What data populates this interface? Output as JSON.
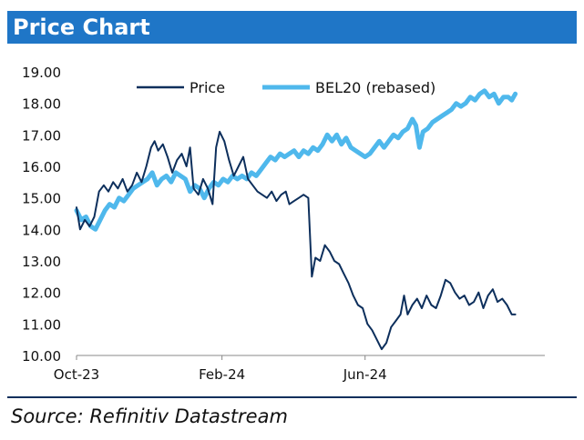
{
  "header": {
    "title": "Price Chart"
  },
  "footer": {
    "source": "Source: Refinitiv Datastream"
  },
  "colors": {
    "title_bar": "#1f76c7",
    "price": "#0d2f5c",
    "bel20": "#4fb8ec",
    "axis": "#888888",
    "rule": "#0d2f5c"
  },
  "chart_data": {
    "type": "line",
    "title": "",
    "xlabel": "",
    "ylabel": "",
    "ylim": [
      10.0,
      19.0
    ],
    "yticks": [
      "19.00",
      "18.00",
      "17.00",
      "16.00",
      "15.00",
      "14.00",
      "13.00",
      "12.00",
      "11.00",
      "10.00"
    ],
    "xticks": [
      {
        "label": "Oct-23",
        "x": "2023-10-01"
      },
      {
        "label": "Feb-24",
        "x": "2024-02-01"
      },
      {
        "label": "Jun-24",
        "x": "2024-06-01"
      }
    ],
    "xlim": [
      "2023-10-01",
      "2024-10-31"
    ],
    "grid": false,
    "legend": "top-center",
    "series": [
      {
        "name": "Price",
        "points": [
          [
            "2023-10-01",
            14.7
          ],
          [
            "2023-10-04",
            14.0
          ],
          [
            "2023-10-08",
            14.3
          ],
          [
            "2023-10-12",
            14.1
          ],
          [
            "2023-10-16",
            14.4
          ],
          [
            "2023-10-20",
            15.2
          ],
          [
            "2023-10-24",
            15.4
          ],
          [
            "2023-10-28",
            15.2
          ],
          [
            "2023-11-01",
            15.5
          ],
          [
            "2023-11-05",
            15.3
          ],
          [
            "2023-11-09",
            15.6
          ],
          [
            "2023-11-13",
            15.2
          ],
          [
            "2023-11-17",
            15.4
          ],
          [
            "2023-11-21",
            15.8
          ],
          [
            "2023-11-25",
            15.5
          ],
          [
            "2023-11-29",
            16.0
          ],
          [
            "2023-12-03",
            16.6
          ],
          [
            "2023-12-06",
            16.8
          ],
          [
            "2023-12-09",
            16.5
          ],
          [
            "2023-12-13",
            16.7
          ],
          [
            "2023-12-17",
            16.3
          ],
          [
            "2023-12-21",
            15.8
          ],
          [
            "2023-12-25",
            16.2
          ],
          [
            "2023-12-29",
            16.4
          ],
          [
            "2024-01-02",
            16.0
          ],
          [
            "2024-01-05",
            16.6
          ],
          [
            "2024-01-08",
            15.3
          ],
          [
            "2024-01-12",
            15.1
          ],
          [
            "2024-01-16",
            15.6
          ],
          [
            "2024-01-20",
            15.3
          ],
          [
            "2024-01-24",
            14.8
          ],
          [
            "2024-01-27",
            16.6
          ],
          [
            "2024-01-30",
            17.1
          ],
          [
            "2024-02-03",
            16.8
          ],
          [
            "2024-02-07",
            16.2
          ],
          [
            "2024-02-11",
            15.7
          ],
          [
            "2024-02-15",
            16.0
          ],
          [
            "2024-02-19",
            16.3
          ],
          [
            "2024-02-23",
            15.6
          ],
          [
            "2024-02-27",
            15.4
          ],
          [
            "2024-03-02",
            15.2
          ],
          [
            "2024-03-06",
            15.1
          ],
          [
            "2024-03-10",
            15.0
          ],
          [
            "2024-03-14",
            15.2
          ],
          [
            "2024-03-18",
            14.9
          ],
          [
            "2024-03-22",
            15.1
          ],
          [
            "2024-03-26",
            15.2
          ],
          [
            "2024-03-29",
            14.8
          ],
          [
            "2024-04-02",
            14.9
          ],
          [
            "2024-04-06",
            15.0
          ],
          [
            "2024-04-10",
            15.1
          ],
          [
            "2024-04-14",
            15.0
          ],
          [
            "2024-04-17",
            12.5
          ],
          [
            "2024-04-20",
            13.1
          ],
          [
            "2024-04-24",
            13.0
          ],
          [
            "2024-04-28",
            13.5
          ],
          [
            "2024-05-02",
            13.3
          ],
          [
            "2024-05-06",
            13.0
          ],
          [
            "2024-05-10",
            12.9
          ],
          [
            "2024-05-14",
            12.6
          ],
          [
            "2024-05-18",
            12.3
          ],
          [
            "2024-05-22",
            11.9
          ],
          [
            "2024-05-26",
            11.6
          ],
          [
            "2024-05-30",
            11.5
          ],
          [
            "2024-06-03",
            11.0
          ],
          [
            "2024-06-07",
            10.8
          ],
          [
            "2024-06-11",
            10.5
          ],
          [
            "2024-06-15",
            10.2
          ],
          [
            "2024-06-19",
            10.4
          ],
          [
            "2024-06-23",
            10.9
          ],
          [
            "2024-06-27",
            11.1
          ],
          [
            "2024-07-01",
            11.3
          ],
          [
            "2024-07-04",
            11.9
          ],
          [
            "2024-07-07",
            11.3
          ],
          [
            "2024-07-11",
            11.6
          ],
          [
            "2024-07-15",
            11.8
          ],
          [
            "2024-07-19",
            11.5
          ],
          [
            "2024-07-23",
            11.9
          ],
          [
            "2024-07-27",
            11.6
          ],
          [
            "2024-07-31",
            11.5
          ],
          [
            "2024-08-04",
            11.9
          ],
          [
            "2024-08-08",
            12.4
          ],
          [
            "2024-08-12",
            12.3
          ],
          [
            "2024-08-16",
            12.0
          ],
          [
            "2024-08-20",
            11.8
          ],
          [
            "2024-08-24",
            11.9
          ],
          [
            "2024-08-28",
            11.6
          ],
          [
            "2024-09-01",
            11.7
          ],
          [
            "2024-09-05",
            12.0
          ],
          [
            "2024-09-09",
            11.5
          ],
          [
            "2024-09-13",
            11.9
          ],
          [
            "2024-09-17",
            12.1
          ],
          [
            "2024-09-21",
            11.7
          ],
          [
            "2024-09-25",
            11.8
          ],
          [
            "2024-09-29",
            11.6
          ],
          [
            "2024-10-03",
            11.3
          ],
          [
            "2024-10-06",
            11.3
          ]
        ]
      },
      {
        "name": "BEL20 (rebased)",
        "points": [
          [
            "2023-10-01",
            14.6
          ],
          [
            "2023-10-05",
            14.3
          ],
          [
            "2023-10-09",
            14.4
          ],
          [
            "2023-10-13",
            14.1
          ],
          [
            "2023-10-17",
            14.0
          ],
          [
            "2023-10-21",
            14.3
          ],
          [
            "2023-10-25",
            14.6
          ],
          [
            "2023-10-29",
            14.8
          ],
          [
            "2023-11-02",
            14.7
          ],
          [
            "2023-11-06",
            15.0
          ],
          [
            "2023-11-10",
            14.9
          ],
          [
            "2023-11-14",
            15.1
          ],
          [
            "2023-11-18",
            15.3
          ],
          [
            "2023-11-22",
            15.4
          ],
          [
            "2023-11-26",
            15.5
          ],
          [
            "2023-11-30",
            15.6
          ],
          [
            "2023-12-04",
            15.8
          ],
          [
            "2023-12-08",
            15.4
          ],
          [
            "2023-12-12",
            15.6
          ],
          [
            "2023-12-16",
            15.7
          ],
          [
            "2023-12-20",
            15.5
          ],
          [
            "2023-12-24",
            15.8
          ],
          [
            "2023-12-28",
            15.7
          ],
          [
            "2024-01-01",
            15.6
          ],
          [
            "2024-01-05",
            15.2
          ],
          [
            "2024-01-09",
            15.4
          ],
          [
            "2024-01-13",
            15.3
          ],
          [
            "2024-01-17",
            15.0
          ],
          [
            "2024-01-21",
            15.3
          ],
          [
            "2024-01-25",
            15.5
          ],
          [
            "2024-01-29",
            15.4
          ],
          [
            "2024-02-02",
            15.6
          ],
          [
            "2024-02-06",
            15.5
          ],
          [
            "2024-02-10",
            15.7
          ],
          [
            "2024-02-14",
            15.6
          ],
          [
            "2024-02-18",
            15.7
          ],
          [
            "2024-02-22",
            15.6
          ],
          [
            "2024-02-26",
            15.8
          ],
          [
            "2024-03-01",
            15.7
          ],
          [
            "2024-03-05",
            15.9
          ],
          [
            "2024-03-09",
            16.1
          ],
          [
            "2024-03-13",
            16.3
          ],
          [
            "2024-03-17",
            16.2
          ],
          [
            "2024-03-21",
            16.4
          ],
          [
            "2024-03-25",
            16.3
          ],
          [
            "2024-03-29",
            16.4
          ],
          [
            "2024-04-02",
            16.5
          ],
          [
            "2024-04-06",
            16.3
          ],
          [
            "2024-04-10",
            16.5
          ],
          [
            "2024-04-14",
            16.4
          ],
          [
            "2024-04-18",
            16.6
          ],
          [
            "2024-04-22",
            16.5
          ],
          [
            "2024-04-26",
            16.7
          ],
          [
            "2024-04-30",
            17.0
          ],
          [
            "2024-05-04",
            16.8
          ],
          [
            "2024-05-08",
            17.0
          ],
          [
            "2024-05-12",
            16.7
          ],
          [
            "2024-05-16",
            16.9
          ],
          [
            "2024-05-20",
            16.6
          ],
          [
            "2024-05-24",
            16.5
          ],
          [
            "2024-05-28",
            16.4
          ],
          [
            "2024-06-01",
            16.3
          ],
          [
            "2024-06-05",
            16.4
          ],
          [
            "2024-06-09",
            16.6
          ],
          [
            "2024-06-13",
            16.8
          ],
          [
            "2024-06-17",
            16.6
          ],
          [
            "2024-06-21",
            16.8
          ],
          [
            "2024-06-25",
            17.0
          ],
          [
            "2024-06-29",
            16.9
          ],
          [
            "2024-07-03",
            17.1
          ],
          [
            "2024-07-07",
            17.2
          ],
          [
            "2024-07-11",
            17.5
          ],
          [
            "2024-07-14",
            17.3
          ],
          [
            "2024-07-17",
            16.6
          ],
          [
            "2024-07-20",
            17.1
          ],
          [
            "2024-07-24",
            17.2
          ],
          [
            "2024-07-28",
            17.4
          ],
          [
            "2024-08-01",
            17.5
          ],
          [
            "2024-08-05",
            17.6
          ],
          [
            "2024-08-09",
            17.7
          ],
          [
            "2024-08-13",
            17.8
          ],
          [
            "2024-08-17",
            18.0
          ],
          [
            "2024-08-21",
            17.9
          ],
          [
            "2024-08-25",
            18.0
          ],
          [
            "2024-08-29",
            18.2
          ],
          [
            "2024-09-02",
            18.1
          ],
          [
            "2024-09-06",
            18.3
          ],
          [
            "2024-09-10",
            18.4
          ],
          [
            "2024-09-14",
            18.2
          ],
          [
            "2024-09-18",
            18.3
          ],
          [
            "2024-09-22",
            18.0
          ],
          [
            "2024-09-26",
            18.2
          ],
          [
            "2024-09-30",
            18.2
          ],
          [
            "2024-10-03",
            18.1
          ],
          [
            "2024-10-06",
            18.3
          ]
        ]
      }
    ]
  }
}
